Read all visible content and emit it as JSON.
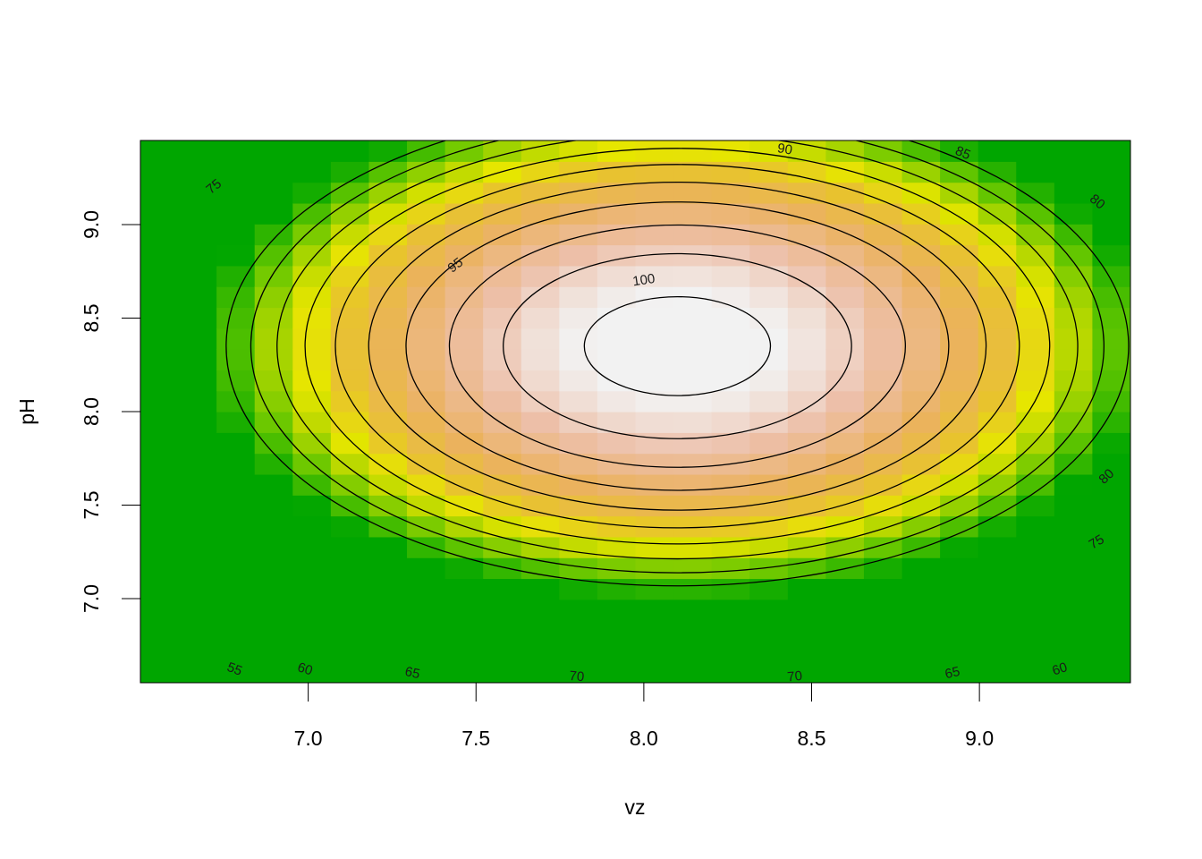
{
  "chart_data": {
    "type": "heatmap",
    "subtype": "image-with-contours",
    "title": "",
    "xlabel": "vz",
    "ylabel": "pH",
    "xlim": [
      6.5,
      9.45
    ],
    "ylim": [
      6.55,
      9.45
    ],
    "x_ticks": [
      {
        "value": 7.0,
        "label": "7.0"
      },
      {
        "value": 7.5,
        "label": "7.5"
      },
      {
        "value": 8.0,
        "label": "8.0"
      },
      {
        "value": 8.5,
        "label": "8.5"
      },
      {
        "value": 9.0,
        "label": "9.0"
      }
    ],
    "y_ticks": [
      {
        "value": 7.0,
        "label": "7.0"
      },
      {
        "value": 7.5,
        "label": "7.5"
      },
      {
        "value": 8.0,
        "label": "8.0"
      },
      {
        "value": 8.5,
        "label": "8.5"
      },
      {
        "value": 9.0,
        "label": "9.0"
      }
    ],
    "grid": false,
    "legend": "none",
    "surface": {
      "form": "quadratic",
      "max_value": 102,
      "center": {
        "x": 8.1,
        "y": 8.35
      },
      "x_curvature": 26.0,
      "y_curvature": 28.6,
      "grid_resolution": [
        26,
        26
      ]
    },
    "colormap": {
      "name": "terrain",
      "stops": [
        {
          "value": 50,
          "color": "#00A600"
        },
        {
          "value": 59,
          "color": "#63C600"
        },
        {
          "value": 66,
          "color": "#BCD900"
        },
        {
          "value": 70,
          "color": "#E6E600"
        },
        {
          "value": 76,
          "color": "#E8C32E"
        },
        {
          "value": 84,
          "color": "#EBB25E"
        },
        {
          "value": 93,
          "color": "#EDBFA8"
        },
        {
          "value": 100,
          "color": "#F2F2F2"
        }
      ]
    },
    "contours": [
      {
        "level": 55,
        "label": "55"
      },
      {
        "level": 60,
        "label": "60"
      },
      {
        "level": 65,
        "label": "65"
      },
      {
        "level": 70,
        "label": "70"
      },
      {
        "level": 75,
        "label": "75"
      },
      {
        "level": 80,
        "label": "80"
      },
      {
        "level": 85,
        "label": "85"
      },
      {
        "level": 90,
        "label": "90"
      },
      {
        "level": 95,
        "label": "95"
      },
      {
        "level": 100,
        "label": "100"
      }
    ],
    "contour_labels": [
      {
        "text": "55",
        "x": 6.78,
        "y": 6.62
      },
      {
        "text": "60",
        "x": 6.99,
        "y": 6.62
      },
      {
        "text": "65",
        "x": 7.31,
        "y": 6.6
      },
      {
        "text": "70",
        "x": 7.8,
        "y": 6.58
      },
      {
        "text": "70",
        "x": 8.45,
        "y": 6.58
      },
      {
        "text": "65",
        "x": 8.92,
        "y": 6.6
      },
      {
        "text": "60",
        "x": 9.24,
        "y": 6.62
      },
      {
        "text": "75",
        "x": 9.35,
        "y": 7.3
      },
      {
        "text": "80",
        "x": 9.38,
        "y": 7.65
      },
      {
        "text": "80",
        "x": 9.35,
        "y": 9.12
      },
      {
        "text": "85",
        "x": 8.95,
        "y": 9.38
      },
      {
        "text": "90",
        "x": 8.42,
        "y": 9.4
      },
      {
        "text": "75",
        "x": 6.72,
        "y": 9.2
      },
      {
        "text": "95",
        "x": 7.44,
        "y": 8.78
      },
      {
        "text": "100",
        "x": 8.0,
        "y": 8.7
      }
    ]
  }
}
